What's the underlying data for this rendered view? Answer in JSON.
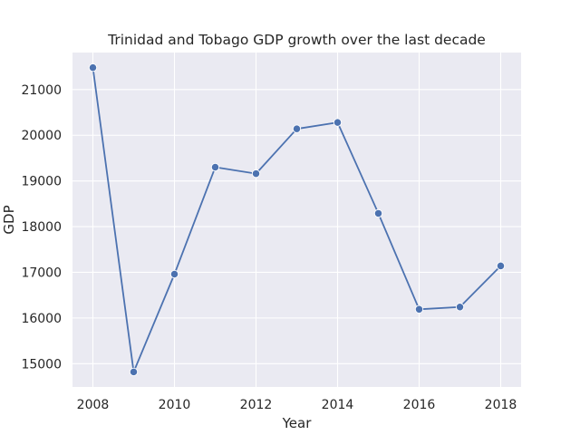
{
  "chart_data": {
    "type": "line",
    "title": "Trinidad and Tobago GDP growth over the last decade",
    "xlabel": "Year",
    "ylabel": "GDP",
    "x": [
      2008,
      2009,
      2010,
      2011,
      2012,
      2013,
      2014,
      2015,
      2016,
      2017,
      2018
    ],
    "series": [
      {
        "values": [
          21480,
          14820,
          16960,
          19300,
          19160,
          20140,
          20280,
          18290,
          16190,
          16240,
          17140
        ]
      }
    ],
    "xticks": [
      "2008",
      "2010",
      "2012",
      "2014",
      "2016",
      "2018"
    ],
    "yticks": [
      "15000",
      "16000",
      "17000",
      "18000",
      "19000",
      "20000",
      "21000"
    ],
    "xlim": [
      2007.5,
      2018.5
    ],
    "ylim": [
      14490,
      21810
    ],
    "grid": true,
    "colors": {
      "background": "#eaeaf2",
      "grid": "#ffffff",
      "line": "#4c72b0"
    }
  }
}
